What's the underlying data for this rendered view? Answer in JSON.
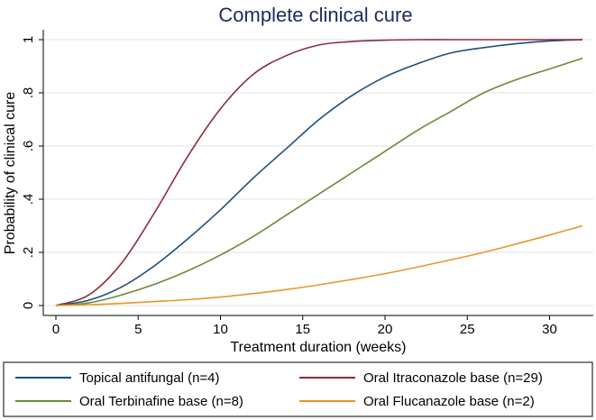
{
  "chart_data": {
    "type": "line",
    "title": "Complete clinical cure",
    "xlabel": "Treatment duration (weeks)",
    "ylabel": "Probability of clinical cure",
    "xlim": [
      0,
      32
    ],
    "ylim": [
      0,
      1
    ],
    "xticks": [
      0,
      5,
      10,
      15,
      20,
      25,
      30
    ],
    "xtick_labels": [
      "0",
      "5",
      "10",
      "15",
      "20",
      "25",
      "30"
    ],
    "yticks": [
      0,
      0.2,
      0.4,
      0.6,
      0.8,
      1
    ],
    "ytick_labels": [
      "0",
      ".2",
      ".4",
      ".6",
      ".8",
      "1"
    ],
    "grid": "horizontal",
    "legend_position": "bottom",
    "series": [
      {
        "name": "Topical antifungal (n=4)",
        "color": "#1f4e79",
        "x": [
          0,
          2,
          4,
          6,
          8,
          10,
          12,
          14,
          16,
          18,
          20,
          22,
          24,
          26,
          28,
          30,
          32
        ],
        "y": [
          0.0,
          0.02,
          0.07,
          0.15,
          0.25,
          0.36,
          0.48,
          0.59,
          0.7,
          0.79,
          0.86,
          0.91,
          0.95,
          0.97,
          0.985,
          0.995,
          1.0
        ]
      },
      {
        "name": "Oral Itraconazole base (n=29)",
        "color": "#8b2c3a",
        "x": [
          0,
          2,
          4,
          6,
          8,
          10,
          12,
          14,
          16,
          18,
          20,
          22,
          24,
          26,
          28,
          30,
          32
        ],
        "y": [
          0.0,
          0.04,
          0.16,
          0.35,
          0.56,
          0.74,
          0.87,
          0.94,
          0.98,
          0.993,
          0.998,
          1.0,
          1.0,
          1.0,
          1.0,
          1.0,
          1.0
        ]
      },
      {
        "name": "Oral Terbinafine base (n=8)",
        "color": "#6a8a3a",
        "x": [
          0,
          2,
          4,
          6,
          8,
          10,
          12,
          14,
          16,
          18,
          20,
          22,
          24,
          26,
          28,
          30,
          32
        ],
        "y": [
          0.0,
          0.01,
          0.04,
          0.08,
          0.13,
          0.19,
          0.26,
          0.34,
          0.42,
          0.5,
          0.58,
          0.66,
          0.73,
          0.8,
          0.85,
          0.89,
          0.93
        ]
      },
      {
        "name": "Oral Flucanazole base (n=2)",
        "color": "#e8962a",
        "x": [
          0,
          2,
          4,
          6,
          8,
          10,
          12,
          14,
          16,
          18,
          20,
          22,
          24,
          26,
          28,
          30,
          32
        ],
        "y": [
          0.0,
          0.003,
          0.008,
          0.015,
          0.022,
          0.032,
          0.045,
          0.06,
          0.078,
          0.098,
          0.12,
          0.145,
          0.172,
          0.2,
          0.232,
          0.265,
          0.3
        ]
      }
    ]
  }
}
